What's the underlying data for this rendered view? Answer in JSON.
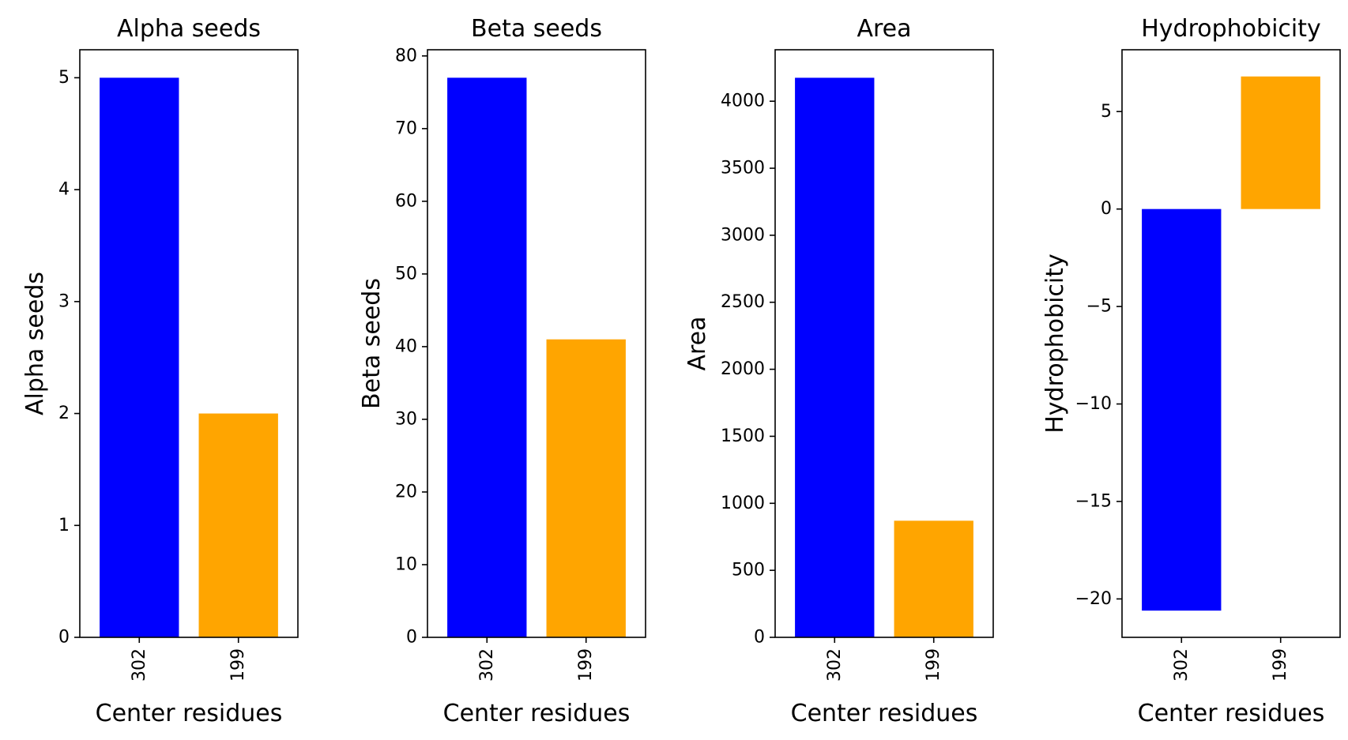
{
  "chart_data": [
    {
      "type": "bar",
      "title": "Alpha seeds",
      "xlabel": "Center residues",
      "ylabel": "Alpha seeds",
      "categories": [
        "302",
        "199"
      ],
      "values": [
        5,
        2
      ],
      "colors": [
        "#0000ff",
        "#ffa500"
      ],
      "ylim": [
        0,
        5.25
      ],
      "yticks": [
        0,
        1,
        2,
        3,
        4,
        5
      ],
      "ytick_labels": [
        "0",
        "1",
        "2",
        "3",
        "4",
        "5"
      ],
      "grid": false
    },
    {
      "type": "bar",
      "title": "Beta seeds",
      "xlabel": "Center residues",
      "ylabel": "Beta seeds",
      "categories": [
        "302",
        "199"
      ],
      "values": [
        77,
        41
      ],
      "colors": [
        "#0000ff",
        "#ffa500"
      ],
      "ylim": [
        0,
        80.85
      ],
      "yticks": [
        0,
        10,
        20,
        30,
        40,
        50,
        60,
        70,
        80
      ],
      "ytick_labels": [
        "0",
        "10",
        "20",
        "30",
        "40",
        "50",
        "60",
        "70",
        "80"
      ],
      "grid": false
    },
    {
      "type": "bar",
      "title": "Area",
      "xlabel": "Center residues",
      "ylabel": "Area",
      "categories": [
        "302",
        "199"
      ],
      "values": [
        4175,
        870
      ],
      "colors": [
        "#0000ff",
        "#ffa500"
      ],
      "ylim": [
        0,
        4384
      ],
      "yticks": [
        0,
        500,
        1000,
        1500,
        2000,
        2500,
        3000,
        3500,
        4000
      ],
      "ytick_labels": [
        "0",
        "500",
        "1000",
        "1500",
        "2000",
        "2500",
        "3000",
        "3500",
        "4000"
      ],
      "grid": false
    },
    {
      "type": "bar",
      "title": "Hydrophobicity",
      "xlabel": "Center residues",
      "ylabel": "Hydrophobicity",
      "categories": [
        "302",
        "199"
      ],
      "values": [
        -20.6,
        6.8
      ],
      "colors": [
        "#0000ff",
        "#ffa500"
      ],
      "ylim": [
        -21.97,
        8.17
      ],
      "yticks": [
        -20,
        -15,
        -10,
        -5,
        0,
        5
      ],
      "ytick_labels": [
        "−20",
        "−15",
        "−10",
        "−5",
        "0",
        "5"
      ],
      "grid": false
    }
  ]
}
